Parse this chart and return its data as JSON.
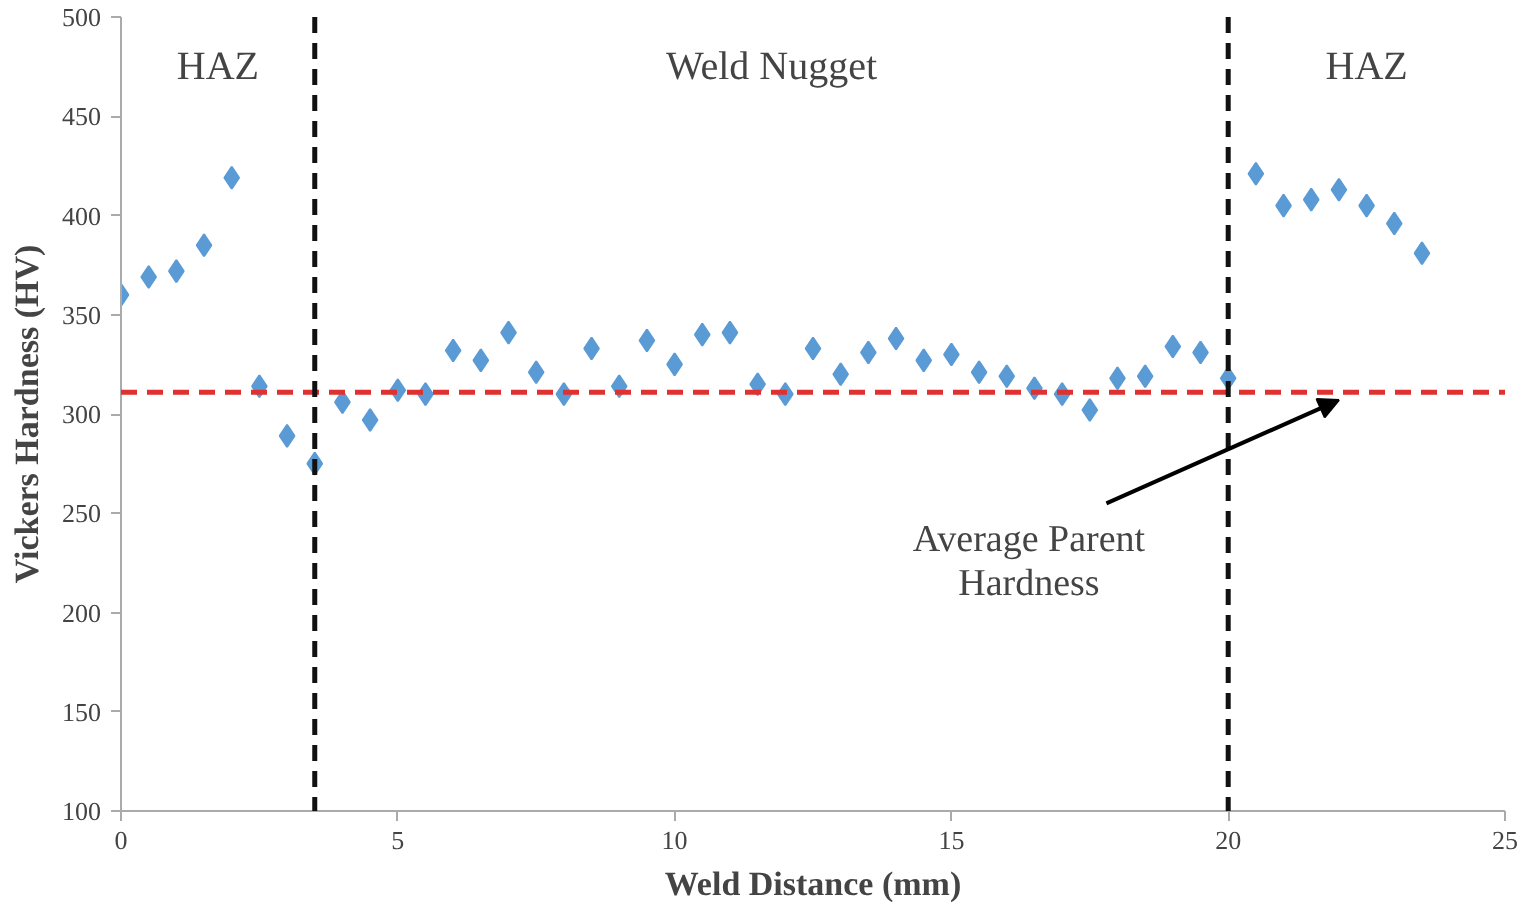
{
  "chart_data": {
    "type": "scatter",
    "xlabel": "Weld Distance (mm)",
    "ylabel": "Vickers Hardness (HV)",
    "x": [
      0,
      0.5,
      1,
      1.5,
      2,
      2.5,
      3,
      3.5,
      4,
      4.5,
      5,
      5.5,
      6,
      6.5,
      7,
      7.5,
      8,
      8.5,
      9,
      9.5,
      10,
      10.5,
      11,
      11.5,
      12,
      12.5,
      13,
      13.5,
      14,
      14.5,
      15,
      15.5,
      16,
      16.5,
      17,
      17.5,
      18,
      18.5,
      19,
      19.5,
      20,
      20.5,
      21,
      21.5,
      22,
      22.5,
      23,
      23.5
    ],
    "series": [
      {
        "color": "#5b9bd5",
        "values": [
          360,
          369,
          372,
          385,
          419,
          314,
          289,
          275,
          306,
          297,
          312,
          310,
          332,
          327,
          341,
          321,
          310,
          333,
          314,
          337,
          325,
          340,
          341,
          315,
          310,
          333,
          320,
          331,
          338,
          327,
          330,
          321,
          319,
          313,
          310,
          302,
          318,
          319,
          334,
          331,
          318,
          421,
          405,
          408,
          413,
          405,
          396,
          381
        ]
      }
    ],
    "marker": "diamond",
    "xlim": [
      0,
      25
    ],
    "ylim": [
      100,
      500
    ],
    "xticks": [
      0,
      5,
      10,
      15,
      20,
      25
    ],
    "yticks": [
      100,
      150,
      200,
      250,
      300,
      350,
      400,
      450,
      500
    ],
    "grid": false,
    "ref_lines": [
      {
        "axis": "y",
        "value": 311,
        "color": "#e03030",
        "line_style": "dashed"
      },
      {
        "axis": "x",
        "value": 3.5,
        "color": "#111111",
        "line_style": "dashed"
      },
      {
        "axis": "x",
        "value": 20,
        "color": "#111111",
        "line_style": "dashed"
      }
    ],
    "annotations": [
      "HAZ",
      "Weld Nugget",
      "HAZ",
      {
        "text": "Average Parent\nHardness",
        "x": 22,
        "y": 311
      }
    ]
  }
}
